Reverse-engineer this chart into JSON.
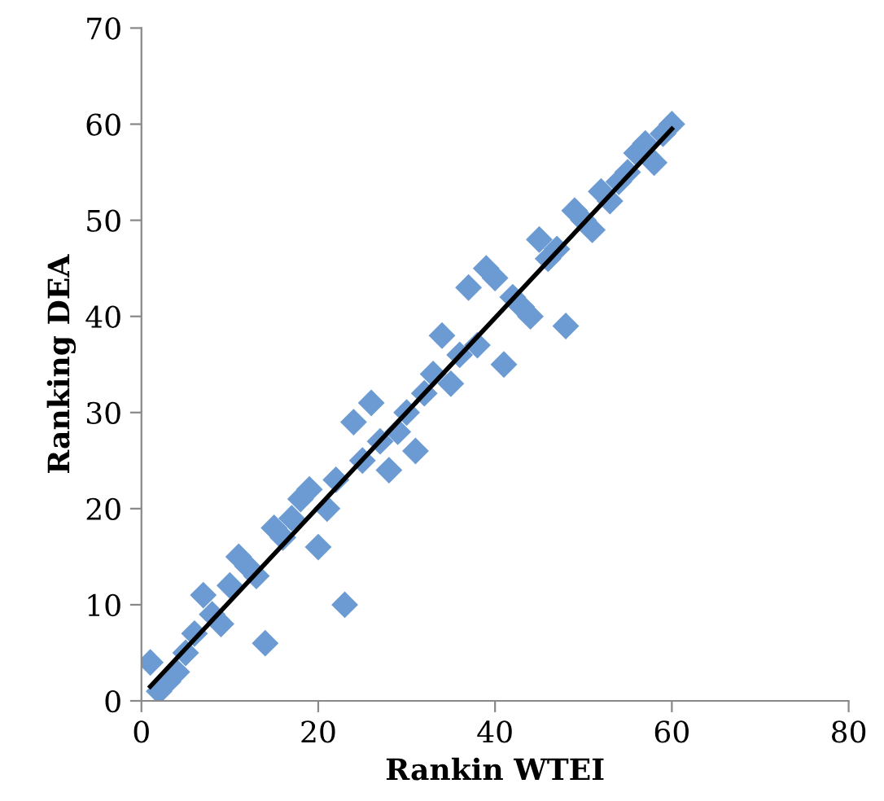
{
  "chart_data": {
    "type": "scatter",
    "xlabel": "Rankin WTEI",
    "ylabel": "Ranking DEA",
    "xlim": [
      0,
      80
    ],
    "xticks": [
      0,
      20,
      40,
      60,
      80
    ],
    "ylim": [
      0,
      70
    ],
    "yticks": [
      0,
      10,
      20,
      30,
      40,
      50,
      60,
      70
    ],
    "grid": false,
    "marker": "diamond",
    "series": [
      {
        "color": "#6b9bd2",
        "x": [
          1,
          2,
          3,
          4,
          5,
          6,
          7,
          8,
          9,
          10,
          11,
          12,
          13,
          14,
          15,
          16,
          17,
          18,
          19,
          20,
          21,
          22,
          23,
          24,
          25,
          26,
          27,
          28,
          29,
          30,
          31,
          32,
          33,
          34,
          35,
          36,
          37,
          38,
          39,
          40,
          41,
          42,
          43,
          44,
          45,
          46,
          47,
          48,
          49,
          50,
          51,
          52,
          53,
          54,
          55,
          56,
          57,
          58,
          59,
          60
        ],
        "values": [
          4,
          1,
          2,
          3,
          5,
          7,
          11,
          9,
          8,
          12,
          15,
          14,
          13,
          6,
          18,
          17,
          19,
          21,
          22,
          16,
          20,
          23,
          10,
          29,
          25,
          31,
          27,
          24,
          28,
          30,
          26,
          32,
          34,
          38,
          33,
          36,
          43,
          37,
          45,
          44,
          35,
          42,
          41,
          40,
          48,
          46,
          47,
          39,
          51,
          50,
          49,
          53,
          52,
          54,
          55,
          57,
          58,
          56,
          59,
          60
        ]
      },
      {
        "type": "line",
        "color": "#000000",
        "marker": "none",
        "line_style": "solid",
        "x": [
          1,
          60
        ],
        "values": [
          1.5,
          59.5
        ]
      }
    ]
  }
}
